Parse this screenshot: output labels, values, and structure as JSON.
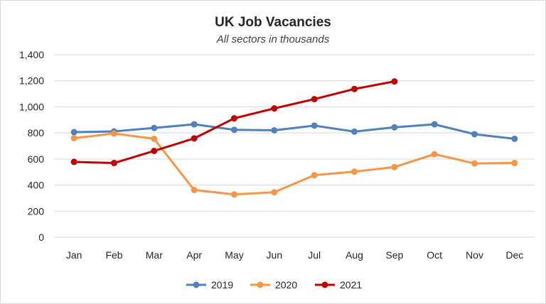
{
  "chart_data": {
    "type": "line",
    "title": "UK Job Vacancies",
    "subtitle": "All sectors in thousands",
    "xlabel": "",
    "ylabel": "",
    "categories": [
      "Jan",
      "Feb",
      "Mar",
      "Apr",
      "May",
      "Jun",
      "Jul",
      "Aug",
      "Sep",
      "Oct",
      "Nov",
      "Dec"
    ],
    "ylim": [
      0,
      1400
    ],
    "yticks": [
      0,
      200,
      400,
      600,
      800,
      1000,
      1200,
      1400
    ],
    "ytick_labels": [
      "0",
      "200",
      "400",
      "600",
      "800",
      "1,000",
      "1,200",
      "1,400"
    ],
    "grid": true,
    "legend_position": "bottom",
    "series": [
      {
        "name": "2019",
        "color": "#4f81bd",
        "values": [
          806,
          812,
          838,
          866,
          824,
          820,
          856,
          810,
          843,
          866,
          790,
          755
        ]
      },
      {
        "name": "2020",
        "color": "#f79646",
        "values": [
          760,
          795,
          755,
          362,
          328,
          345,
          476,
          503,
          538,
          637,
          566,
          569
        ]
      },
      {
        "name": "2021",
        "color": "#c00000",
        "values": [
          578,
          569,
          662,
          758,
          912,
          988,
          1059,
          1137,
          1195,
          null,
          null,
          null
        ]
      }
    ]
  }
}
